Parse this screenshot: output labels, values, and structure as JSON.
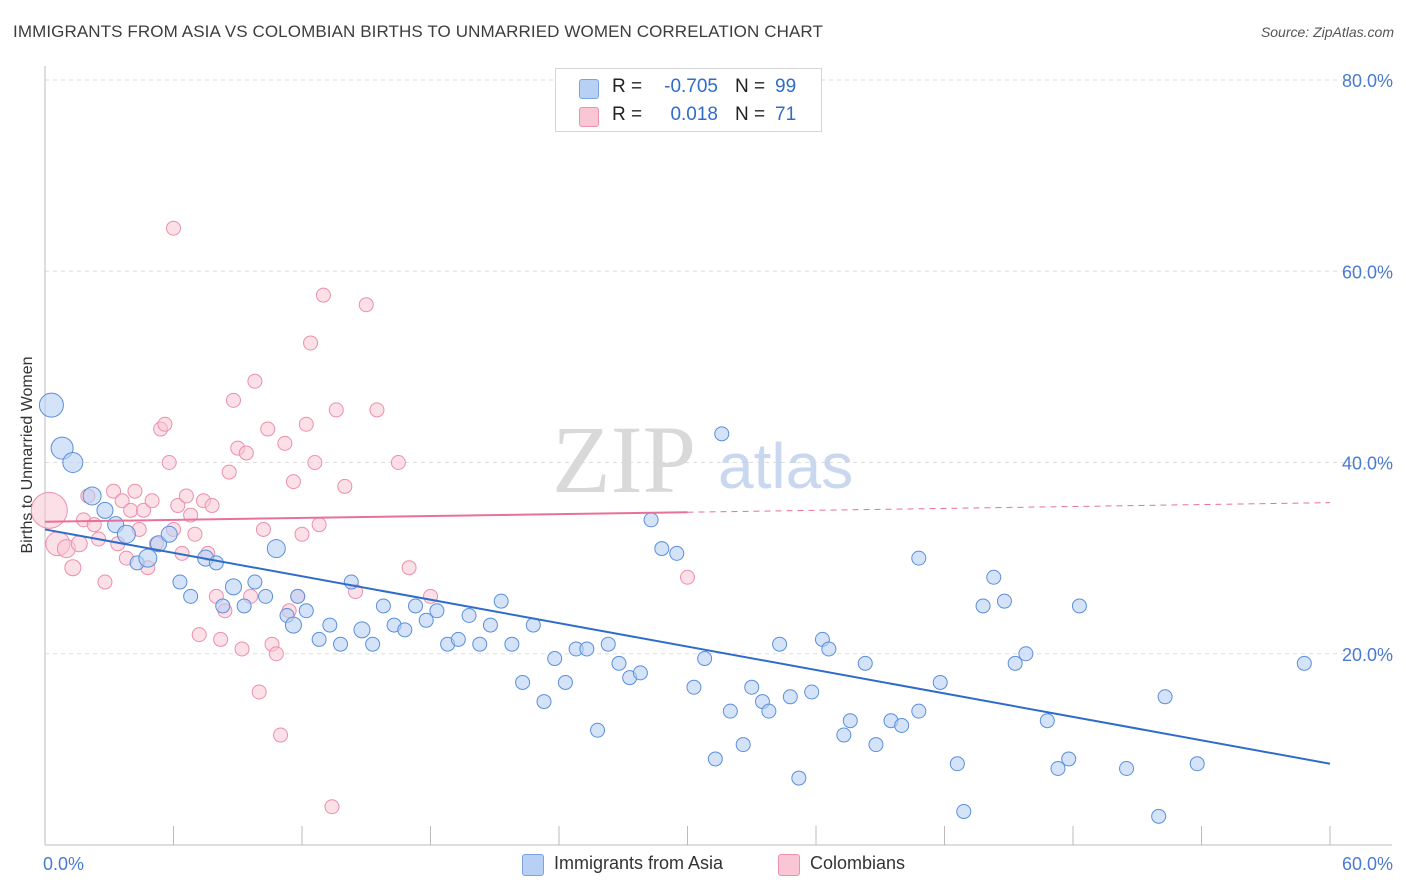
{
  "title": "IMMIGRANTS FROM ASIA VS COLOMBIAN BIRTHS TO UNMARRIED WOMEN CORRELATION CHART",
  "source": "Source: ZipAtlas.com",
  "watermark": {
    "zip": "ZIP",
    "atlas": "atlas"
  },
  "stats": {
    "asia": {
      "r_label": "R =",
      "r_value": "-0.705",
      "n_label": "N =",
      "n_value": "99"
    },
    "colombians": {
      "r_label": "R =",
      "r_value": "0.018",
      "n_label": "N =",
      "n_value": "71"
    }
  },
  "legend": {
    "asia": "Immigrants from Asia",
    "colombians": "Colombians"
  },
  "colors": {
    "asia_fill": "#b7d0f3",
    "asia_stroke": "#5b8fdc",
    "asia_line": "#2f6cc9",
    "col_fill": "#f8c6d5",
    "col_stroke": "#ec8fab",
    "col_line": "#e8709a",
    "tick_text": "#4a7bd0",
    "grid": "#dddddd"
  },
  "chart_data": {
    "type": "scatter",
    "title": "IMMIGRANTS FROM ASIA VS COLOMBIAN BIRTHS TO UNMARRIED WOMEN CORRELATION CHART",
    "xlabel": "",
    "ylabel": "Births to Unmarried Women",
    "xlim": [
      0,
      60
    ],
    "ylim": [
      0,
      80
    ],
    "x_tick_labels": [
      "0.0%",
      "60.0%"
    ],
    "y_ticks": [
      20,
      40,
      60,
      80
    ],
    "y_tick_labels": [
      "20.0%",
      "40.0%",
      "60.0%",
      "80.0%"
    ],
    "grid": "horizontal dashed",
    "legend_position": "bottom-center",
    "series": [
      {
        "name": "Immigrants from Asia",
        "r": -0.705,
        "n": 99,
        "trend": {
          "x": [
            0,
            60
          ],
          "y": [
            33.0,
            8.5
          ],
          "style": "solid"
        },
        "points": [
          [
            0.3,
            46,
            12
          ],
          [
            0.8,
            41.5,
            11
          ],
          [
            1.3,
            40,
            10
          ],
          [
            2.2,
            36.5,
            9
          ],
          [
            2.8,
            35,
            8
          ],
          [
            3.3,
            33.5,
            8
          ],
          [
            3.8,
            32.5,
            9
          ],
          [
            4.3,
            29.5,
            7
          ],
          [
            4.8,
            30,
            9
          ],
          [
            5.3,
            31.5,
            8
          ],
          [
            5.8,
            32.5,
            8
          ],
          [
            6.3,
            27.5,
            7
          ],
          [
            6.8,
            26,
            7
          ],
          [
            7.5,
            30,
            8
          ],
          [
            8.0,
            29.5,
            7
          ],
          [
            8.3,
            25,
            7
          ],
          [
            8.8,
            27,
            8
          ],
          [
            9.3,
            25,
            7
          ],
          [
            9.8,
            27.5,
            7
          ],
          [
            10.3,
            26,
            7
          ],
          [
            10.8,
            31,
            9
          ],
          [
            11.3,
            24,
            7
          ],
          [
            11.6,
            23,
            8
          ],
          [
            11.8,
            26,
            7
          ],
          [
            12.2,
            24.5,
            7
          ],
          [
            12.8,
            21.5,
            7
          ],
          [
            13.3,
            23,
            7
          ],
          [
            13.8,
            21,
            7
          ],
          [
            14.3,
            27.5,
            7
          ],
          [
            14.8,
            22.5,
            8
          ],
          [
            15.3,
            21,
            7
          ],
          [
            15.8,
            25,
            7
          ],
          [
            16.3,
            23,
            7
          ],
          [
            16.8,
            22.5,
            7
          ],
          [
            17.3,
            25,
            7
          ],
          [
            17.8,
            23.5,
            7
          ],
          [
            18.3,
            24.5,
            7
          ],
          [
            18.8,
            21,
            7
          ],
          [
            19.3,
            21.5,
            7
          ],
          [
            19.8,
            24,
            7
          ],
          [
            20.3,
            21,
            7
          ],
          [
            20.8,
            23,
            7
          ],
          [
            21.3,
            25.5,
            7
          ],
          [
            21.8,
            21,
            7
          ],
          [
            22.3,
            17,
            7
          ],
          [
            22.8,
            23,
            7
          ],
          [
            23.3,
            15,
            7
          ],
          [
            23.8,
            19.5,
            7
          ],
          [
            24.3,
            17,
            7
          ],
          [
            24.8,
            20.5,
            7
          ],
          [
            25.3,
            20.5,
            7
          ],
          [
            25.8,
            12,
            7
          ],
          [
            26.3,
            21,
            7
          ],
          [
            26.8,
            19,
            7
          ],
          [
            27.3,
            17.5,
            7
          ],
          [
            27.8,
            18,
            7
          ],
          [
            28.3,
            34,
            7
          ],
          [
            28.8,
            31,
            7
          ],
          [
            29.5,
            30.5,
            7
          ],
          [
            30.3,
            16.5,
            7
          ],
          [
            30.8,
            19.5,
            7
          ],
          [
            31.3,
            9,
            7
          ],
          [
            31.6,
            43,
            7
          ],
          [
            32.0,
            14,
            7
          ],
          [
            32.6,
            10.5,
            7
          ],
          [
            33.0,
            16.5,
            7
          ],
          [
            33.5,
            15,
            7
          ],
          [
            33.8,
            14,
            7
          ],
          [
            34.3,
            21,
            7
          ],
          [
            34.8,
            15.5,
            7
          ],
          [
            35.2,
            7,
            7
          ],
          [
            35.8,
            16,
            7
          ],
          [
            36.3,
            21.5,
            7
          ],
          [
            36.6,
            20.5,
            7
          ],
          [
            37.3,
            11.5,
            7
          ],
          [
            37.6,
            13,
            7
          ],
          [
            38.3,
            19,
            7
          ],
          [
            38.8,
            10.5,
            7
          ],
          [
            39.5,
            13,
            7
          ],
          [
            40.0,
            12.5,
            7
          ],
          [
            40.8,
            14,
            7
          ],
          [
            40.8,
            30,
            7
          ],
          [
            41.8,
            17,
            7
          ],
          [
            42.6,
            8.5,
            7
          ],
          [
            42.9,
            3.5,
            7
          ],
          [
            43.8,
            25,
            7
          ],
          [
            44.3,
            28,
            7
          ],
          [
            44.8,
            25.5,
            7
          ],
          [
            45.3,
            19,
            7
          ],
          [
            45.8,
            20,
            7
          ],
          [
            46.8,
            13,
            7
          ],
          [
            47.3,
            8,
            7
          ],
          [
            47.8,
            9,
            7
          ],
          [
            48.3,
            25,
            7
          ],
          [
            50.5,
            8,
            7
          ],
          [
            52.0,
            3,
            7
          ],
          [
            52.3,
            15.5,
            7
          ],
          [
            53.8,
            8.5,
            7
          ],
          [
            58.8,
            19,
            7
          ]
        ]
      },
      {
        "name": "Colombians",
        "r": 0.018,
        "n": 71,
        "trend": {
          "x": [
            0,
            60
          ],
          "y": [
            33.8,
            35.8
          ],
          "style": "solid to x=30 then dashed"
        },
        "points": [
          [
            0.2,
            35,
            18
          ],
          [
            0.6,
            31.5,
            12
          ],
          [
            1.0,
            31,
            9
          ],
          [
            1.3,
            29,
            8
          ],
          [
            1.6,
            31.5,
            8
          ],
          [
            1.8,
            34,
            7
          ],
          [
            2.0,
            36.5,
            7
          ],
          [
            2.3,
            33.5,
            7
          ],
          [
            2.5,
            32,
            7
          ],
          [
            2.8,
            27.5,
            7
          ],
          [
            3.2,
            37,
            7
          ],
          [
            3.4,
            31.5,
            7
          ],
          [
            3.6,
            36,
            7
          ],
          [
            3.8,
            30,
            7
          ],
          [
            4.0,
            35,
            7
          ],
          [
            4.2,
            37,
            7
          ],
          [
            4.4,
            33,
            7
          ],
          [
            4.6,
            35,
            7
          ],
          [
            4.8,
            29,
            7
          ],
          [
            5.0,
            36,
            7
          ],
          [
            5.2,
            31.5,
            7
          ],
          [
            5.4,
            43.5,
            7
          ],
          [
            5.6,
            44,
            7
          ],
          [
            5.8,
            40,
            7
          ],
          [
            6.0,
            33,
            7
          ],
          [
            6.2,
            35.5,
            7
          ],
          [
            6.4,
            30.5,
            7
          ],
          [
            6.6,
            36.5,
            7
          ],
          [
            6.8,
            34.5,
            7
          ],
          [
            7.0,
            32.5,
            7
          ],
          [
            7.2,
            22,
            7
          ],
          [
            7.4,
            36,
            7
          ],
          [
            7.6,
            30.5,
            7
          ],
          [
            7.8,
            35.5,
            7
          ],
          [
            8.0,
            26,
            7
          ],
          [
            8.2,
            21.5,
            7
          ],
          [
            8.4,
            24.5,
            7
          ],
          [
            8.6,
            39,
            7
          ],
          [
            8.8,
            46.5,
            7
          ],
          [
            9.0,
            41.5,
            7
          ],
          [
            9.2,
            20.5,
            7
          ],
          [
            9.4,
            41,
            7
          ],
          [
            9.6,
            26,
            7
          ],
          [
            9.8,
            48.5,
            7
          ],
          [
            10.0,
            16,
            7
          ],
          [
            10.2,
            33,
            7
          ],
          [
            10.4,
            43.5,
            7
          ],
          [
            10.6,
            21,
            7
          ],
          [
            10.8,
            20,
            7
          ],
          [
            11.0,
            11.5,
            7
          ],
          [
            11.2,
            42,
            7
          ],
          [
            11.4,
            24.5,
            7
          ],
          [
            11.6,
            38,
            7
          ],
          [
            11.8,
            26,
            7
          ],
          [
            12.0,
            32.5,
            7
          ],
          [
            12.2,
            44,
            7
          ],
          [
            12.4,
            52.5,
            7
          ],
          [
            12.6,
            40,
            7
          ],
          [
            12.8,
            33.5,
            7
          ],
          [
            13.0,
            57.5,
            7
          ],
          [
            13.4,
            4,
            7
          ],
          [
            13.6,
            45.5,
            7
          ],
          [
            14.0,
            37.5,
            7
          ],
          [
            14.5,
            26.5,
            7
          ],
          [
            15.0,
            56.5,
            7
          ],
          [
            15.5,
            45.5,
            7
          ],
          [
            6.0,
            64.5,
            7
          ],
          [
            16.5,
            40,
            7
          ],
          [
            17.0,
            29,
            7
          ],
          [
            18.0,
            26,
            7
          ],
          [
            30.0,
            28,
            7
          ]
        ]
      }
    ]
  }
}
